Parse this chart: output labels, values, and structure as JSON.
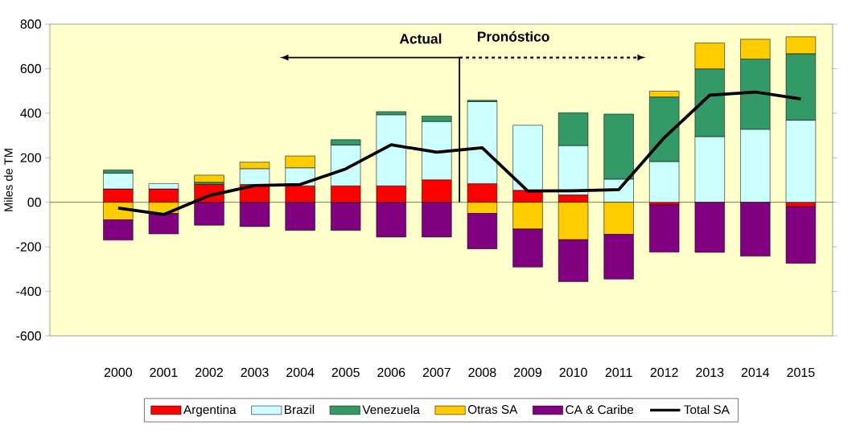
{
  "chart_data": {
    "type": "bar",
    "stacked": true,
    "ylabel": "Miles de TM",
    "categories": [
      "2000",
      "2001",
      "2002",
      "2003",
      "2004",
      "2005",
      "2006",
      "2007",
      "2008",
      "2009",
      "2010",
      "2011",
      "2012",
      "2013",
      "2014",
      "2015"
    ],
    "series": [
      {
        "name": "Argentina",
        "color": "#ff0000",
        "values": [
          60,
          60,
          80,
          80,
          74,
          74,
          74,
          101,
          84,
          54,
          33,
          null,
          -12,
          null,
          null,
          -20
        ]
      },
      {
        "name": "Brazil",
        "color": "#ccffff",
        "values": [
          71,
          24,
          null,
          71,
          81,
          183,
          319,
          262,
          368,
          292,
          222,
          104,
          183,
          295,
          328,
          369
        ]
      },
      {
        "name": "Venezuela",
        "color": "#339966",
        "values": [
          14,
          null,
          10,
          null,
          null,
          24,
          14,
          24,
          6,
          null,
          147,
          292,
          290,
          304,
          315,
          298
        ]
      },
      {
        "name": "Otras SA",
        "color": "#ffcc00",
        "values": [
          -79,
          -50,
          32,
          29,
          53,
          null,
          null,
          null,
          -50,
          -120,
          -168,
          -144,
          26,
          116,
          89,
          76
        ]
      },
      {
        "name": "CA & Caribe",
        "color": "#800080",
        "values": [
          -91,
          -92,
          -103,
          -109,
          -126,
          -126,
          -156,
          -156,
          -159,
          -171,
          -188,
          -201,
          -212,
          -225,
          -242,
          -254
        ]
      },
      {
        "name": "Total SA",
        "type": "line",
        "color": "#000000",
        "values": [
          -26,
          -55,
          30,
          75,
          80,
          150,
          258,
          225,
          245,
          51,
          52,
          57,
          290,
          481,
          495,
          464
        ]
      }
    ],
    "ylim": [
      -600,
      800
    ],
    "yticks": [
      -600,
      -400,
      -200,
      {
        "value": 0,
        "label": "00"
      },
      200,
      400,
      600,
      800
    ],
    "legend": "bottom",
    "annotations": [
      "Actual",
      "Pronóstico"
    ]
  }
}
